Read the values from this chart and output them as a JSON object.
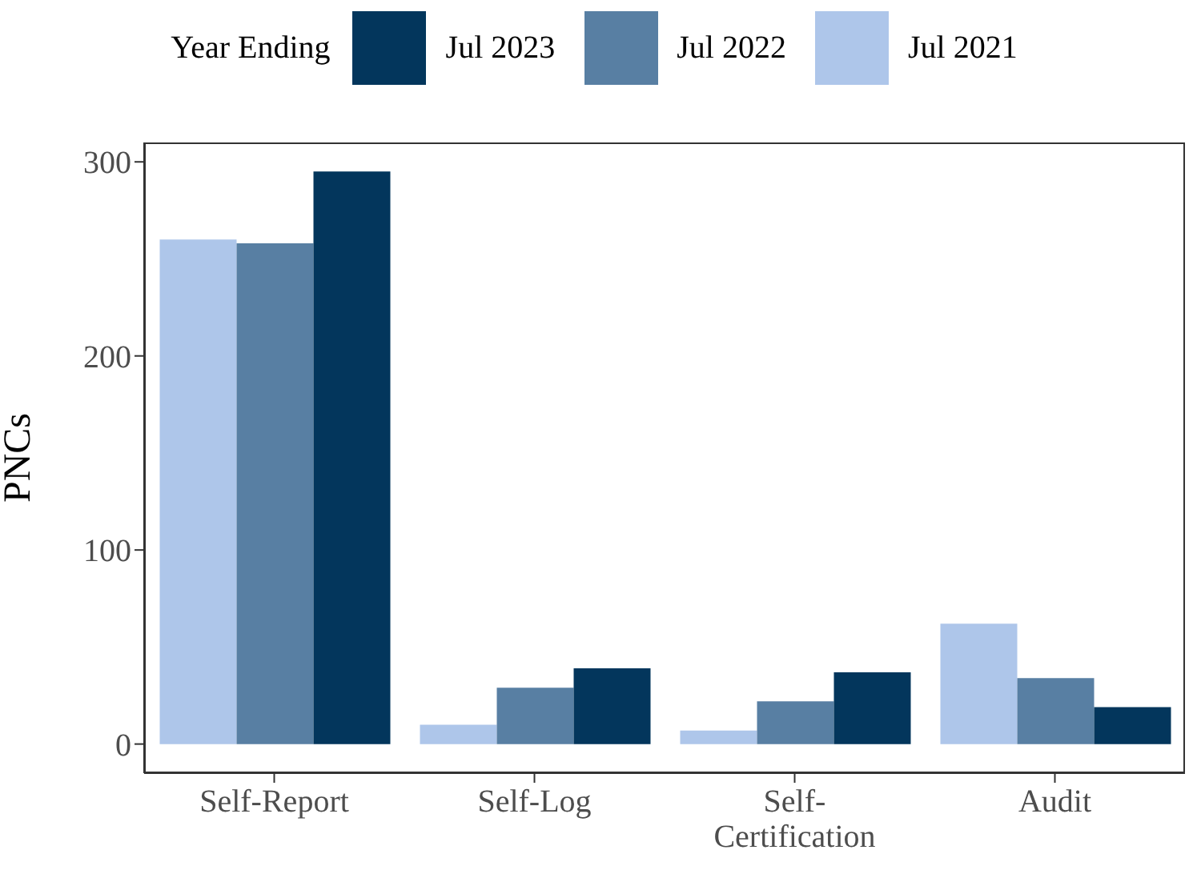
{
  "chart_data": {
    "type": "bar",
    "ylabel": "PNCs",
    "legend_title": "Year Ending",
    "legend": "top",
    "categories": [
      "Self-Report",
      "Self-Log",
      "Self-Certification",
      "Audit"
    ],
    "series": [
      {
        "name": "Jul 2021",
        "color": "#aec6ea",
        "values": [
          260,
          10,
          7,
          62
        ]
      },
      {
        "name": "Jul 2022",
        "color": "#587fa3",
        "values": [
          258,
          29,
          22,
          34
        ]
      },
      {
        "name": "Jul 2023",
        "color": "#03365c",
        "values": [
          295,
          39,
          37,
          19
        ]
      }
    ],
    "ylim": [
      -15,
      310
    ],
    "yticks": [
      0,
      100,
      200,
      300
    ],
    "grid": false
  }
}
